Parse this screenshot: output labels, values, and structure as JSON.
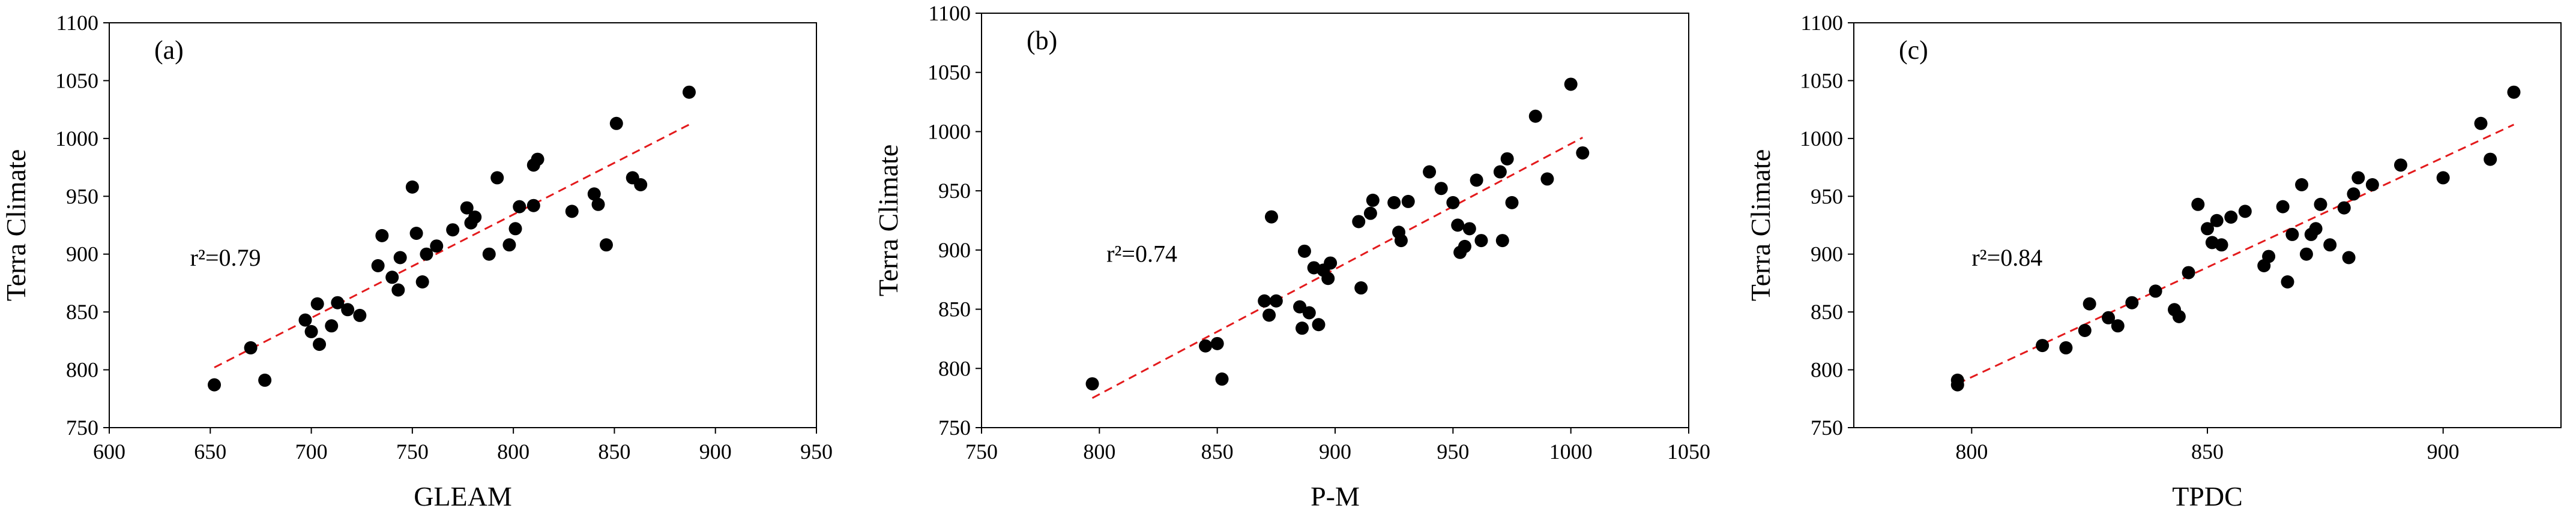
{
  "chart_data": [
    {
      "type": "scatter",
      "panel_label": "(a)",
      "xlabel": "GLEAM",
      "ylabel": "Terra Climate",
      "xlim": [
        600,
        950
      ],
      "ylim": [
        750,
        1100
      ],
      "xticks": [
        600,
        650,
        700,
        750,
        800,
        850,
        900,
        950
      ],
      "yticks": [
        750,
        800,
        850,
        900,
        950,
        1000,
        1050,
        1100
      ],
      "grid": false,
      "annotation": {
        "text": "r²=0.79",
        "x": 640,
        "y": 890
      },
      "trendline": {
        "style": "dashed",
        "color": "#e31a1c",
        "x": [
          652,
          887
        ],
        "y": [
          802,
          1012
        ]
      },
      "points": [
        [
          652,
          787
        ],
        [
          670,
          819
        ],
        [
          677,
          791
        ],
        [
          697,
          843
        ],
        [
          700,
          833
        ],
        [
          703,
          857
        ],
        [
          704,
          822
        ],
        [
          710,
          838
        ],
        [
          713,
          858
        ],
        [
          718,
          852
        ],
        [
          724,
          847
        ],
        [
          733,
          890
        ],
        [
          735,
          916
        ],
        [
          740,
          880
        ],
        [
          743,
          869
        ],
        [
          744,
          897
        ],
        [
          750,
          958
        ],
        [
          752,
          918
        ],
        [
          755,
          876
        ],
        [
          757,
          900
        ],
        [
          762,
          907
        ],
        [
          770,
          921
        ],
        [
          777,
          940
        ],
        [
          779,
          927
        ],
        [
          781,
          932
        ],
        [
          788,
          900
        ],
        [
          792,
          966
        ],
        [
          798,
          908
        ],
        [
          801,
          922
        ],
        [
          803,
          941
        ],
        [
          810,
          942
        ],
        [
          810,
          977
        ],
        [
          812,
          982
        ],
        [
          829,
          937
        ],
        [
          840,
          952
        ],
        [
          842,
          943
        ],
        [
          846,
          908
        ],
        [
          851,
          1013
        ],
        [
          859,
          966
        ],
        [
          863,
          960
        ],
        [
          887,
          1040
        ]
      ],
      "marker_color": "#000000"
    },
    {
      "type": "scatter",
      "panel_label": "(b)",
      "xlabel": "P-M",
      "ylabel": "Terra Climate",
      "xlim": [
        750,
        1050
      ],
      "ylim": [
        750,
        1100
      ],
      "xticks": [
        750,
        800,
        850,
        900,
        950,
        1000,
        1050
      ],
      "yticks": [
        750,
        800,
        850,
        900,
        950,
        1000,
        1050,
        1100
      ],
      "grid": false,
      "annotation": {
        "text": "r²=0.74",
        "x": 803,
        "y": 890
      },
      "trendline": {
        "style": "dashed",
        "color": "#e31a1c",
        "x": [
          797,
          1005
        ],
        "y": [
          775,
          995
        ]
      },
      "points": [
        [
          797,
          787
        ],
        [
          845,
          819
        ],
        [
          850,
          821
        ],
        [
          852,
          791
        ],
        [
          870,
          857
        ],
        [
          872,
          845
        ],
        [
          873,
          928
        ],
        [
          875,
          857
        ],
        [
          885,
          852
        ],
        [
          886,
          834
        ],
        [
          887,
          899
        ],
        [
          889,
          847
        ],
        [
          891,
          885
        ],
        [
          893,
          837
        ],
        [
          895,
          883
        ],
        [
          897,
          876
        ],
        [
          898,
          889
        ],
        [
          910,
          924
        ],
        [
          911,
          868
        ],
        [
          915,
          931
        ],
        [
          916,
          942
        ],
        [
          925,
          940
        ],
        [
          927,
          915
        ],
        [
          928,
          908
        ],
        [
          931,
          941
        ],
        [
          940,
          966
        ],
        [
          945,
          952
        ],
        [
          950,
          940
        ],
        [
          952,
          921
        ],
        [
          953,
          898
        ],
        [
          955,
          903
        ],
        [
          957,
          918
        ],
        [
          960,
          959
        ],
        [
          962,
          908
        ],
        [
          970,
          966
        ],
        [
          971,
          908
        ],
        [
          973,
          977
        ],
        [
          975,
          940
        ],
        [
          985,
          1013
        ],
        [
          990,
          960
        ],
        [
          1000,
          1040
        ],
        [
          1005,
          982
        ]
      ],
      "marker_color": "#000000"
    },
    {
      "type": "scatter",
      "panel_label": "(c)",
      "xlabel": "TPDC",
      "ylabel": "Terra Climate",
      "xlim": [
        775,
        925
      ],
      "ylim": [
        750,
        1100
      ],
      "xticks": [
        800,
        850,
        900
      ],
      "yticks": [
        750,
        800,
        850,
        900,
        950,
        1000,
        1050,
        1100
      ],
      "grid": false,
      "annotation": {
        "text": "r²=0.84",
        "x": 800,
        "y": 890
      },
      "trendline": {
        "style": "dashed",
        "color": "#e31a1c",
        "x": [
          797,
          915
        ],
        "y": [
          788,
          1012
        ]
      },
      "points": [
        [
          797,
          791
        ],
        [
          797,
          787
        ],
        [
          815,
          821
        ],
        [
          820,
          819
        ],
        [
          824,
          834
        ],
        [
          825,
          857
        ],
        [
          829,
          845
        ],
        [
          831,
          838
        ],
        [
          834,
          858
        ],
        [
          839,
          868
        ],
        [
          843,
          852
        ],
        [
          844,
          846
        ],
        [
          846,
          884
        ],
        [
          848,
          943
        ],
        [
          850,
          922
        ],
        [
          851,
          910
        ],
        [
          852,
          929
        ],
        [
          853,
          908
        ],
        [
          855,
          932
        ],
        [
          858,
          937
        ],
        [
          862,
          890
        ],
        [
          863,
          898
        ],
        [
          866,
          941
        ],
        [
          867,
          876
        ],
        [
          868,
          917
        ],
        [
          870,
          960
        ],
        [
          871,
          900
        ],
        [
          872,
          917
        ],
        [
          873,
          922
        ],
        [
          874,
          943
        ],
        [
          876,
          908
        ],
        [
          879,
          940
        ],
        [
          880,
          897
        ],
        [
          881,
          952
        ],
        [
          882,
          966
        ],
        [
          885,
          960
        ],
        [
          891,
          977
        ],
        [
          900,
          966
        ],
        [
          908,
          1013
        ],
        [
          910,
          982
        ],
        [
          915,
          1040
        ]
      ],
      "marker_color": "#000000"
    }
  ]
}
